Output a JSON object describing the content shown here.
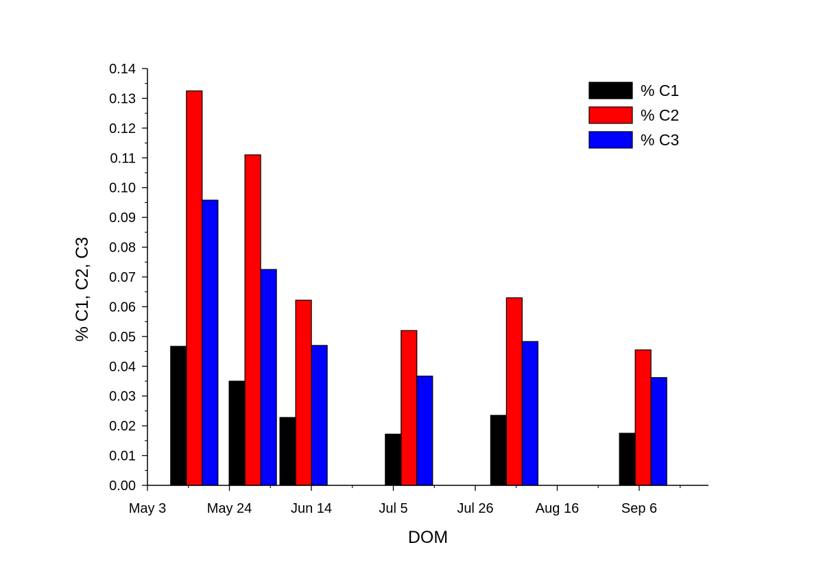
{
  "chart_data": {
    "type": "bar",
    "title": "",
    "xlabel": "DOM",
    "ylabel": "% C1, C2, C3",
    "ylim": [
      0,
      0.14
    ],
    "y_ticks": [
      "0.00",
      "0.01",
      "0.02",
      "0.03",
      "0.04",
      "0.05",
      "0.06",
      "0.07",
      "0.08",
      "0.09",
      "0.10",
      "0.11",
      "0.12",
      "0.13",
      "0.14"
    ],
    "x_tick_labels": [
      "May 3",
      "May 24",
      "Jun 14",
      "Jul 5",
      "Jul 26",
      "Aug 16",
      "Sep 6"
    ],
    "legend_position": "top-right",
    "grid": false,
    "groups": [
      {
        "date": "May 15",
        "values": [
          0.0467,
          0.1325,
          0.0958
        ]
      },
      {
        "date": "May 30",
        "values": [
          0.035,
          0.111,
          0.0725
        ]
      },
      {
        "date": "Jun 12",
        "values": [
          0.0228,
          0.0622,
          0.047
        ]
      },
      {
        "date": "Jul 9",
        "values": [
          0.0172,
          0.052,
          0.0367
        ]
      },
      {
        "date": "Aug 5",
        "values": [
          0.0235,
          0.063,
          0.0483
        ]
      },
      {
        "date": "Sep 7",
        "values": [
          0.0175,
          0.0455,
          0.0362
        ]
      }
    ],
    "series": [
      {
        "name": "% C1",
        "color": "#000000"
      },
      {
        "name": "% C2",
        "color": "#ff0000"
      },
      {
        "name": "% C3",
        "color": "#0000ff"
      }
    ]
  }
}
